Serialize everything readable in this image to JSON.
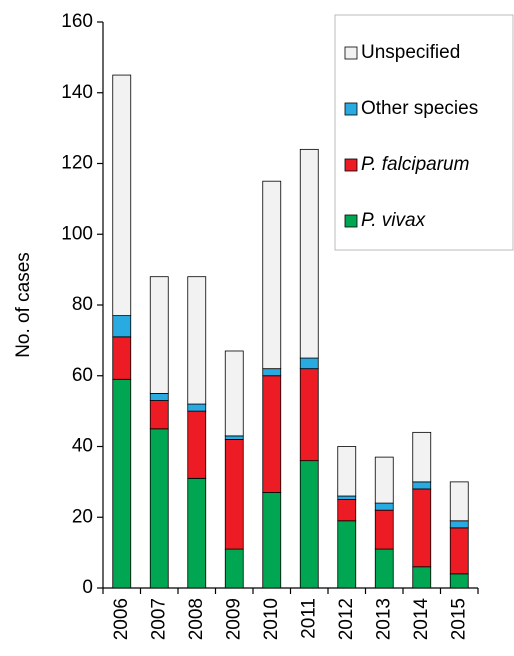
{
  "chart_data": {
    "type": "stacked-bar",
    "y_label": "No. of cases",
    "categories": [
      "2006",
      "2007",
      "2008",
      "2009",
      "2010",
      "2011",
      "2012",
      "2013",
      "2014",
      "2015"
    ],
    "series": [
      {
        "name": "P. vivax",
        "color": "#00a651",
        "italic": true,
        "values": [
          59,
          45,
          31,
          11,
          27,
          36,
          19,
          11,
          6,
          4
        ]
      },
      {
        "name": "P. falciparum",
        "color": "#ed1c24",
        "italic": true,
        "values": [
          12,
          8,
          19,
          31,
          33,
          26,
          6,
          11,
          22,
          13
        ]
      },
      {
        "name": "Other species",
        "color": "#29abe2",
        "italic": false,
        "values": [
          6,
          2,
          2,
          1,
          2,
          3,
          1,
          2,
          2,
          2
        ]
      },
      {
        "name": "Unspecified",
        "color": "#f2f2f2",
        "italic": false,
        "values": [
          68,
          33,
          36,
          24,
          53,
          59,
          14,
          13,
          14,
          11
        ]
      }
    ],
    "ylim": [
      0,
      160
    ],
    "yticks": [
      0,
      20,
      40,
      60,
      80,
      100,
      120,
      140,
      160
    ],
    "legend": "upper right"
  }
}
